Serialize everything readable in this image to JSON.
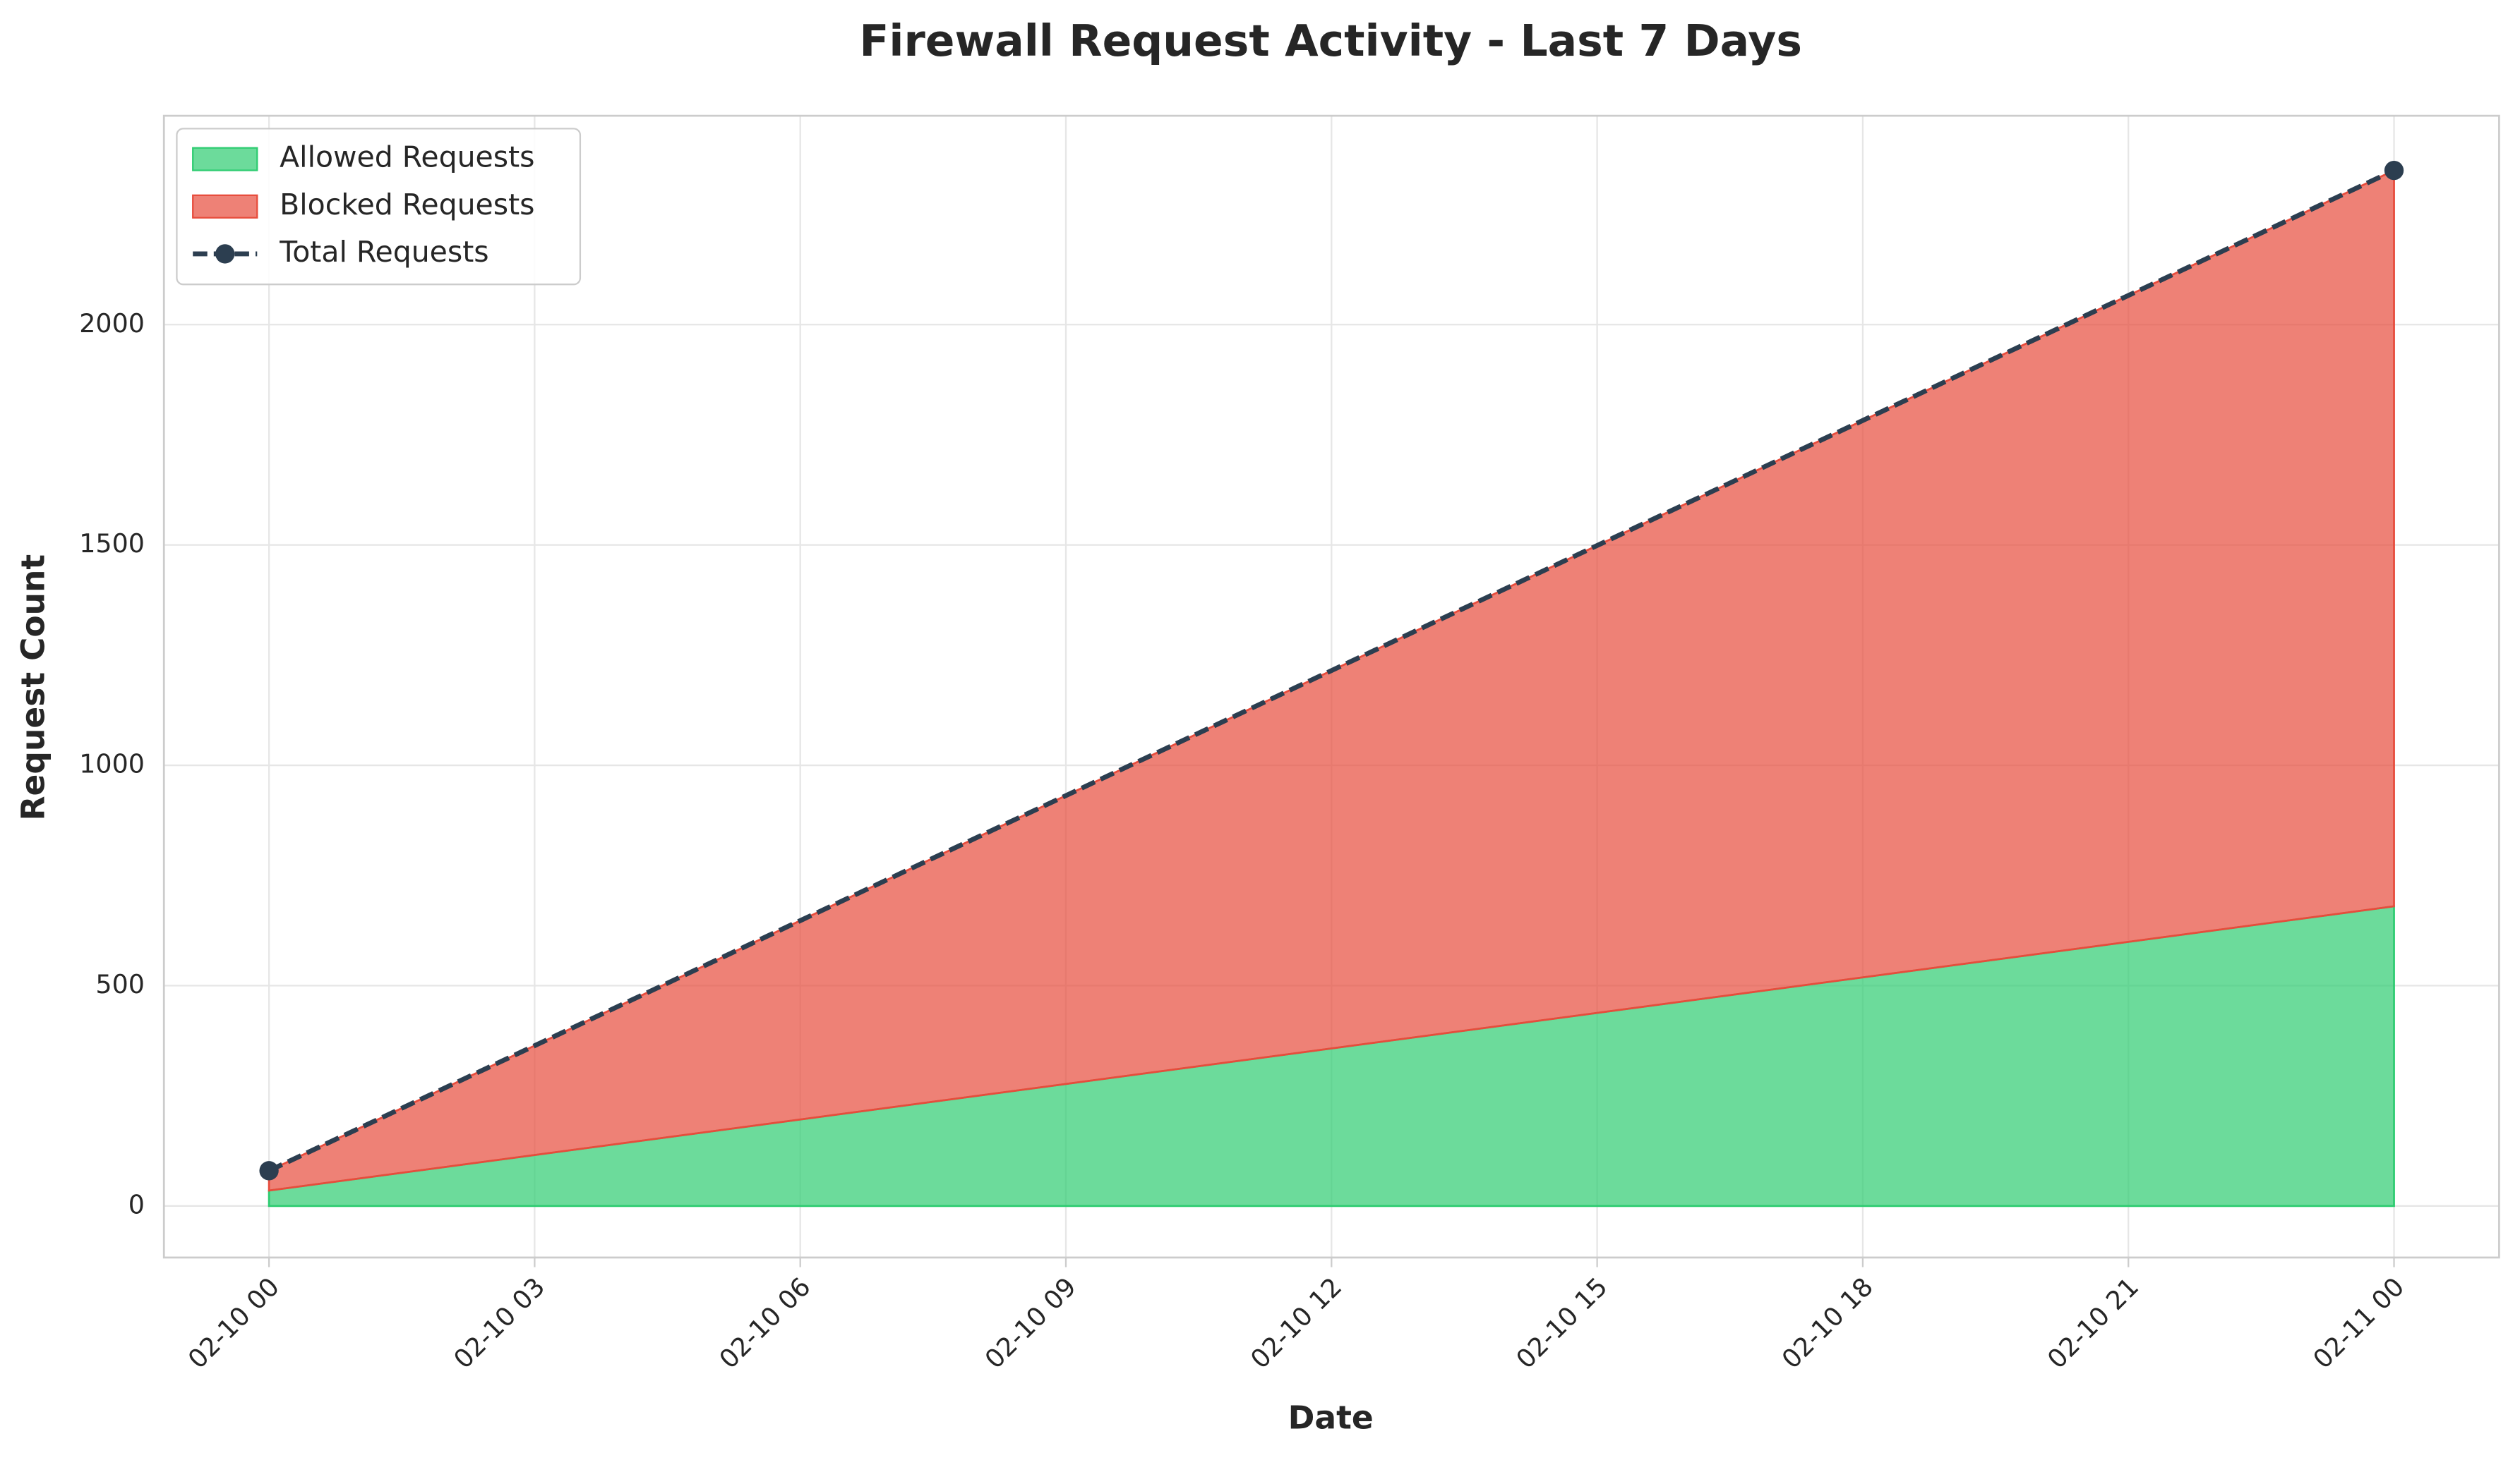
{
  "chart_data": {
    "type": "area",
    "title": "Firewall Request Activity - Last 7 Days",
    "xlabel": "Date",
    "ylabel": "Request Count",
    "x": [
      "02-10 00",
      "02-11 00"
    ],
    "xticks": [
      "02-10 00",
      "02-10 03",
      "02-10 06",
      "02-10 09",
      "02-10 12",
      "02-10 15",
      "02-10 18",
      "02-10 21",
      "02-11 00"
    ],
    "series": [
      {
        "name": "Allowed Requests",
        "color": "#2ecc71",
        "values": [
          35,
          680
        ],
        "stacked": true
      },
      {
        "name": "Blocked Requests",
        "color": "#e74c3c",
        "values": [
          45,
          1670
        ],
        "stacked": true
      },
      {
        "name": "Total Requests",
        "color": "#2c3e50",
        "values": [
          80,
          2350
        ],
        "line": true
      }
    ],
    "ylim": [
      -117,
      2474
    ],
    "yticks": [
      0,
      500,
      1000,
      1500,
      2000
    ],
    "grid": true,
    "legend": "upper left"
  }
}
